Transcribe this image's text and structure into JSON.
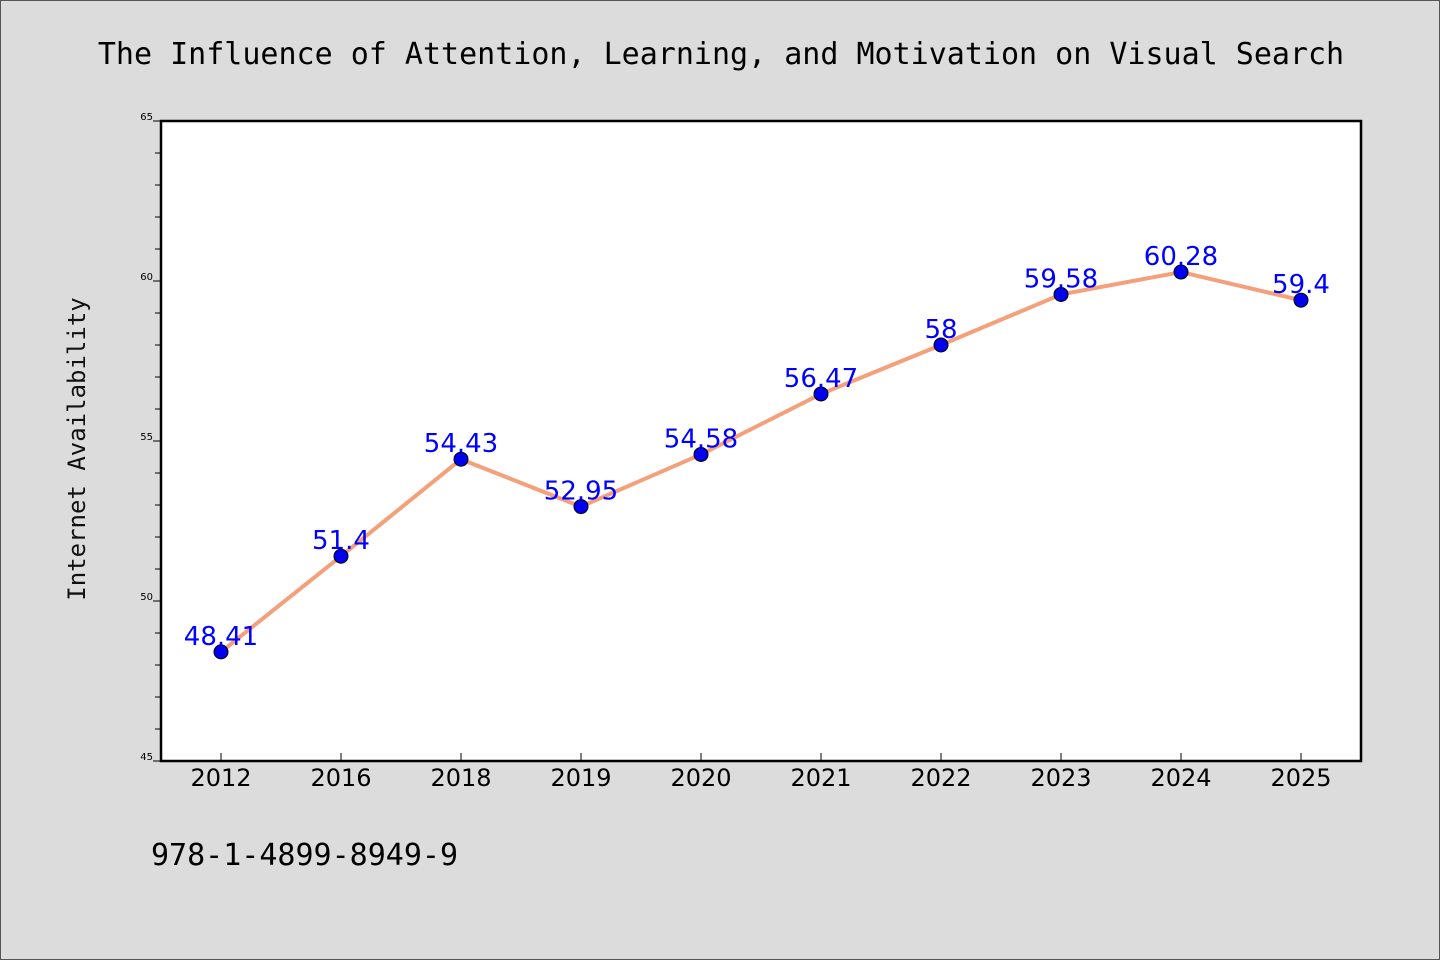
{
  "chart_data": {
    "type": "line",
    "title": "The Influence of Attention, Learning, and Motivation on Visual Search",
    "xlabel": "",
    "ylabel": "Internet Availability",
    "categories": [
      "2012",
      "2016",
      "2018",
      "2019",
      "2020",
      "2021",
      "2022",
      "2023",
      "2024",
      "2025"
    ],
    "series": [
      {
        "values": [
          48.41,
          51.4,
          54.43,
          52.95,
          54.58,
          56.47,
          58,
          59.58,
          60.28,
          59.4
        ],
        "labels": [
          "48.41",
          "51.4",
          "54.43",
          "52.95",
          "54.58",
          "56.47",
          "58",
          "59.58",
          "60.28",
          "59.4"
        ],
        "line_color": "#f4a07a",
        "marker_color": "#0000ee"
      }
    ],
    "ylim": [
      45,
      65
    ],
    "yticks": [
      "45",
      "50",
      "55",
      "60",
      "65"
    ],
    "grid": false,
    "legend": "none",
    "data_label_color": "#0000ff"
  },
  "footer": {
    "isbn": "978-1-4899-8949-9"
  },
  "colors": {
    "background": "#dcdcdc",
    "plot_background": "#ffffff"
  }
}
